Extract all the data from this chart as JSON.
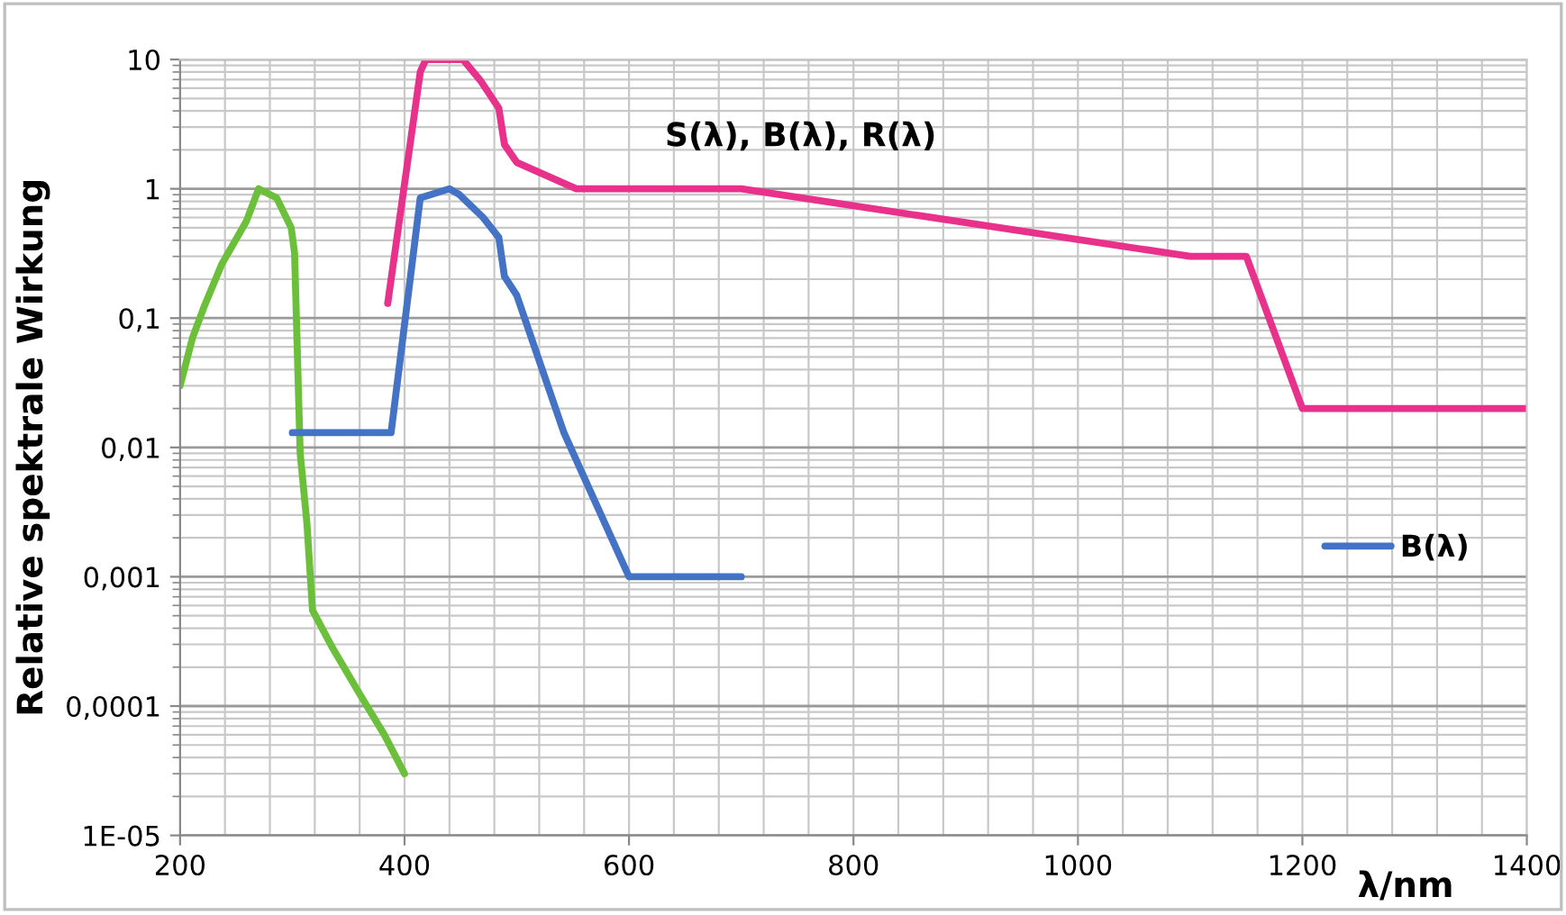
{
  "chart_data": {
    "type": "line",
    "title": "S(λ), B(λ), R(λ)",
    "xlabel": "λ/nm",
    "ylabel": "Relative spektrale Wirkung",
    "log": "y",
    "grid": true,
    "legend": "right",
    "line_style": "solid",
    "marker": "none",
    "xlim": [
      200,
      1400
    ],
    "xticks": [
      200,
      400,
      600,
      800,
      1000,
      1200,
      1400
    ],
    "ylim": [
      1e-05,
      10
    ],
    "yticks": [
      {
        "value": 1e-05,
        "label": "1E-05"
      },
      {
        "value": 0.0001,
        "label": "0,0001"
      },
      {
        "value": 0.001,
        "label": "0,001"
      },
      {
        "value": 0.01,
        "label": "0,01"
      },
      {
        "value": 0.1,
        "label": "0,1"
      },
      {
        "value": 1,
        "label": "1"
      },
      {
        "value": 10,
        "label": "10"
      }
    ],
    "series": [
      {
        "color": "#6cbf3a",
        "x": [
          200,
          211,
          221,
          237,
          259,
          270,
          286,
          299,
          302,
          307,
          313,
          318,
          336,
          361,
          382,
          400
        ],
        "values": [
          0.03,
          0.07,
          0.12,
          0.26,
          0.56,
          1,
          0.85,
          0.5,
          0.32,
          0.009,
          0.0026,
          0.00055,
          0.00028,
          0.00012,
          6e-05,
          3e-05
        ]
      },
      {
        "name": "B(λ)",
        "color": "#4472c4",
        "x": [
          300,
          388,
          414,
          440,
          449,
          470,
          484,
          489,
          500,
          542,
          600,
          700
        ],
        "values": [
          0.013,
          0.013,
          0.85,
          1,
          0.9,
          0.6,
          0.42,
          0.21,
          0.15,
          0.013,
          0.001,
          0.001
        ]
      },
      {
        "color": "#e8318a",
        "x": [
          385,
          414,
          419,
          452,
          468,
          484,
          489,
          500,
          553,
          700,
          1100,
          1150,
          1200,
          1400
        ],
        "values": [
          0.13,
          8,
          10,
          10,
          6.8,
          4.2,
          2.2,
          1.6,
          1,
          1,
          0.3,
          0.3,
          0.02,
          0.02
        ]
      }
    ]
  }
}
